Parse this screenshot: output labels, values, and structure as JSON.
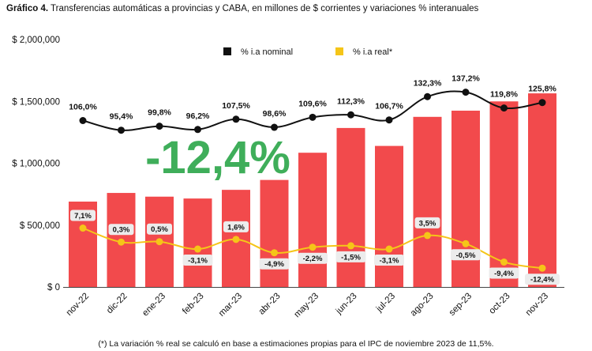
{
  "title": {
    "prefix": "Gráfico 4.",
    "text": " Transferencias automáticas a provincias y CABA, en millones de $ corrientes y variaciones % interanuales"
  },
  "footnote": "(*) La variación % real se calculó en base a estimaciones propias para el IPC de noviembre 2023 de 11,5%.",
  "highlight": "-12,4%",
  "colors": {
    "bar": "#f24a4c",
    "nominal": "#111111",
    "real": "#f5c518",
    "highlight": "#3fae5a"
  },
  "chart_data": {
    "type": "bar",
    "categories": [
      "nov-22",
      "dic-22",
      "ene-23",
      "feb-23",
      "mar-23",
      "abr-23",
      "may-23",
      "jun-23",
      "jul-23",
      "ago-23",
      "sep-23",
      "oct-23",
      "nov-23"
    ],
    "values": [
      690000,
      760000,
      730000,
      715000,
      785000,
      865000,
      1085000,
      1285000,
      1140000,
      1375000,
      1425000,
      1500000,
      1565000
    ],
    "ylim": [
      0,
      2000000
    ],
    "yticks": [
      0,
      500000,
      1000000,
      1500000,
      2000000
    ],
    "ytick_labels": [
      "$ 0",
      "$ 500,000",
      "$ 1,000,000",
      "$ 1,500,000",
      "$ 2,000,000"
    ],
    "legend": {
      "placement": "top-center",
      "entries": [
        "% i.a nominal",
        "% i.a real*"
      ]
    },
    "series": [
      {
        "name": "% i.a nominal",
        "values": [
          106.0,
          95.4,
          99.8,
          96.2,
          107.5,
          98.6,
          109.6,
          112.3,
          106.7,
          132.3,
          137.2,
          119.8,
          125.8
        ],
        "labels": [
          "106,0%",
          "95,4%",
          "99,8%",
          "96,2%",
          "107,5%",
          "98,6%",
          "109,6%",
          "112,3%",
          "106,7%",
          "132,3%",
          "137,2%",
          "119,8%",
          "125,8%"
        ]
      },
      {
        "name": "% i.a real*",
        "values": [
          7.1,
          0.3,
          0.5,
          -3.1,
          1.6,
          -4.9,
          -2.2,
          -1.5,
          -3.1,
          3.5,
          -0.5,
          -9.4,
          -12.4
        ],
        "labels": [
          "7,1%",
          "0,3%",
          "0,5%",
          "-3,1%",
          "1,6%",
          "-4,9%",
          "-2,2%",
          "-1,5%",
          "-3,1%",
          "3,5%",
          "-0,5%",
          "-9,4%",
          "-12,4%"
        ]
      }
    ],
    "grid": false
  }
}
